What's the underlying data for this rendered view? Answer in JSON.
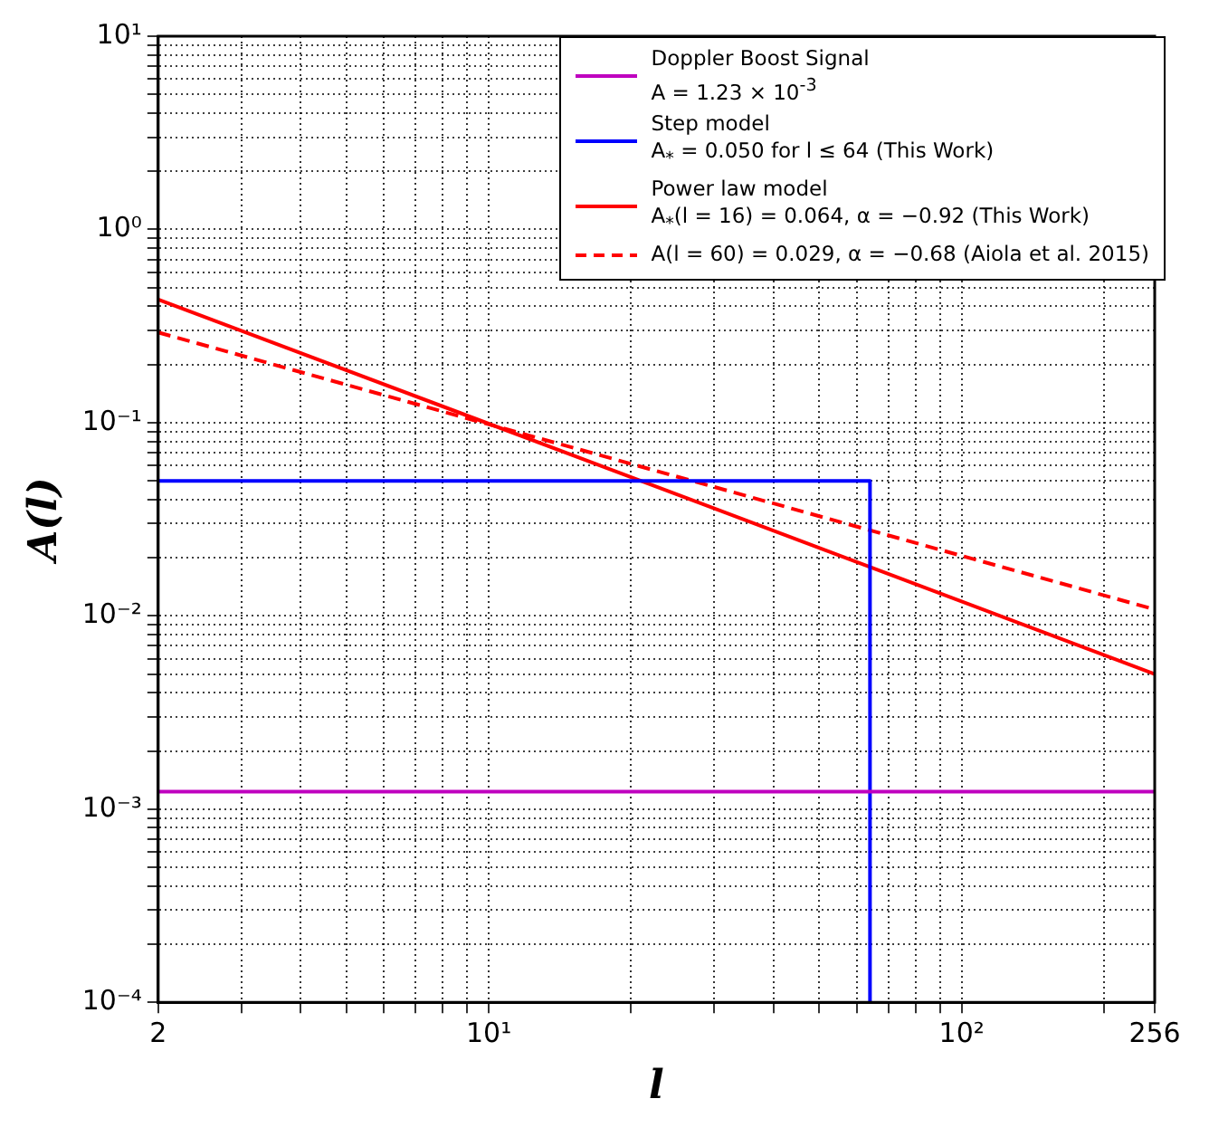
{
  "chart_data": {
    "type": "line",
    "xlabel": "l",
    "ylabel": "A(l)",
    "log": "xy",
    "grid": true,
    "legend": "top right",
    "marker": "none",
    "xlim": [
      2,
      256
    ],
    "ylim": [
      0.0001,
      10
    ],
    "xticks": [
      2,
      {
        "value": 3,
        "label": null
      },
      {
        "value": 4,
        "label": null
      },
      {
        "value": 5,
        "label": null
      },
      {
        "value": 6,
        "label": null
      },
      {
        "value": 7,
        "label": null
      },
      {
        "value": 8,
        "label": null
      },
      {
        "value": 9,
        "label": null
      },
      {
        "value": 10,
        "label": "10¹"
      },
      {
        "value": 20,
        "label": null
      },
      {
        "value": 30,
        "label": null
      },
      {
        "value": 40,
        "label": null
      },
      {
        "value": 50,
        "label": null
      },
      {
        "value": 60,
        "label": null
      },
      {
        "value": 70,
        "label": null
      },
      {
        "value": 80,
        "label": null
      },
      {
        "value": 90,
        "label": null
      },
      {
        "value": 100,
        "label": "10²"
      },
      {
        "value": 200,
        "label": null
      },
      256
    ],
    "yticks": [
      {
        "value": 0.0001,
        "label": "10⁻⁴"
      },
      {
        "value": 0.0002,
        "label": null
      },
      {
        "value": 0.0003,
        "label": null
      },
      {
        "value": 0.0004,
        "label": null
      },
      {
        "value": 0.0005,
        "label": null
      },
      {
        "value": 0.0006,
        "label": null
      },
      {
        "value": 0.0007,
        "label": null
      },
      {
        "value": 0.0008,
        "label": null
      },
      {
        "value": 0.0009,
        "label": null
      },
      {
        "value": 0.001,
        "label": "10⁻³"
      },
      {
        "value": 0.002,
        "label": null
      },
      {
        "value": 0.003,
        "label": null
      },
      {
        "value": 0.004,
        "label": null
      },
      {
        "value": 0.005,
        "label": null
      },
      {
        "value": 0.006,
        "label": null
      },
      {
        "value": 0.007,
        "label": null
      },
      {
        "value": 0.008,
        "label": null
      },
      {
        "value": 0.009,
        "label": null
      },
      {
        "value": 0.01,
        "label": "10⁻²"
      },
      {
        "value": 0.02,
        "label": null
      },
      {
        "value": 0.03,
        "label": null
      },
      {
        "value": 0.04,
        "label": null
      },
      {
        "value": 0.05,
        "label": null
      },
      {
        "value": 0.06,
        "label": null
      },
      {
        "value": 0.07,
        "label": null
      },
      {
        "value": 0.08,
        "label": null
      },
      {
        "value": 0.09,
        "label": null
      },
      {
        "value": 0.1,
        "label": "10⁻¹"
      },
      {
        "value": 0.2,
        "label": null
      },
      {
        "value": 0.3,
        "label": null
      },
      {
        "value": 0.4,
        "label": null
      },
      {
        "value": 0.5,
        "label": null
      },
      {
        "value": 0.6,
        "label": null
      },
      {
        "value": 0.7,
        "label": null
      },
      {
        "value": 0.8,
        "label": null
      },
      {
        "value": 0.9,
        "label": null
      },
      {
        "value": 1,
        "label": "10⁰"
      },
      {
        "value": 2,
        "label": null
      },
      {
        "value": 3,
        "label": null
      },
      {
        "value": 4,
        "label": null
      },
      {
        "value": 5,
        "label": null
      },
      {
        "value": 6,
        "label": null
      },
      {
        "value": 7,
        "label": null
      },
      {
        "value": 8,
        "label": null
      },
      {
        "value": 9,
        "label": null
      },
      {
        "value": 10,
        "label": "10¹"
      }
    ],
    "series": [
      {
        "name": "Doppler Boost Signal\nA = 1.23 × 10$^{-3}$",
        "color": "#bf00bf",
        "line_style": "solid",
        "x": [
          2,
          256
        ],
        "values": [
          0.00123,
          0.00123
        ]
      },
      {
        "name": "Step model\nA$_{*}$ = 0.050 for l ≤ 64 (This Work)",
        "color": "#0000ff",
        "line_style": "solid",
        "x": [
          2,
          64,
          64
        ],
        "values": [
          0.05,
          0.05,
          0.0001
        ]
      },
      {
        "name": "Power law model\nA$_{*}$(l = 16) = 0.064, α = −0.92 (This Work)",
        "color": "#ff0000",
        "line_style": "solid",
        "x": [
          2,
          256
        ],
        "values": [
          0.434,
          0.005
        ]
      },
      {
        "name": "A(l = 60) = 0.029, α = −0.68 (Aiola et al. 2015)",
        "color": "#ff0000",
        "line_style": "dashed",
        "x": [
          2,
          256
        ],
        "values": [
          0.293,
          0.0108
        ]
      }
    ]
  }
}
